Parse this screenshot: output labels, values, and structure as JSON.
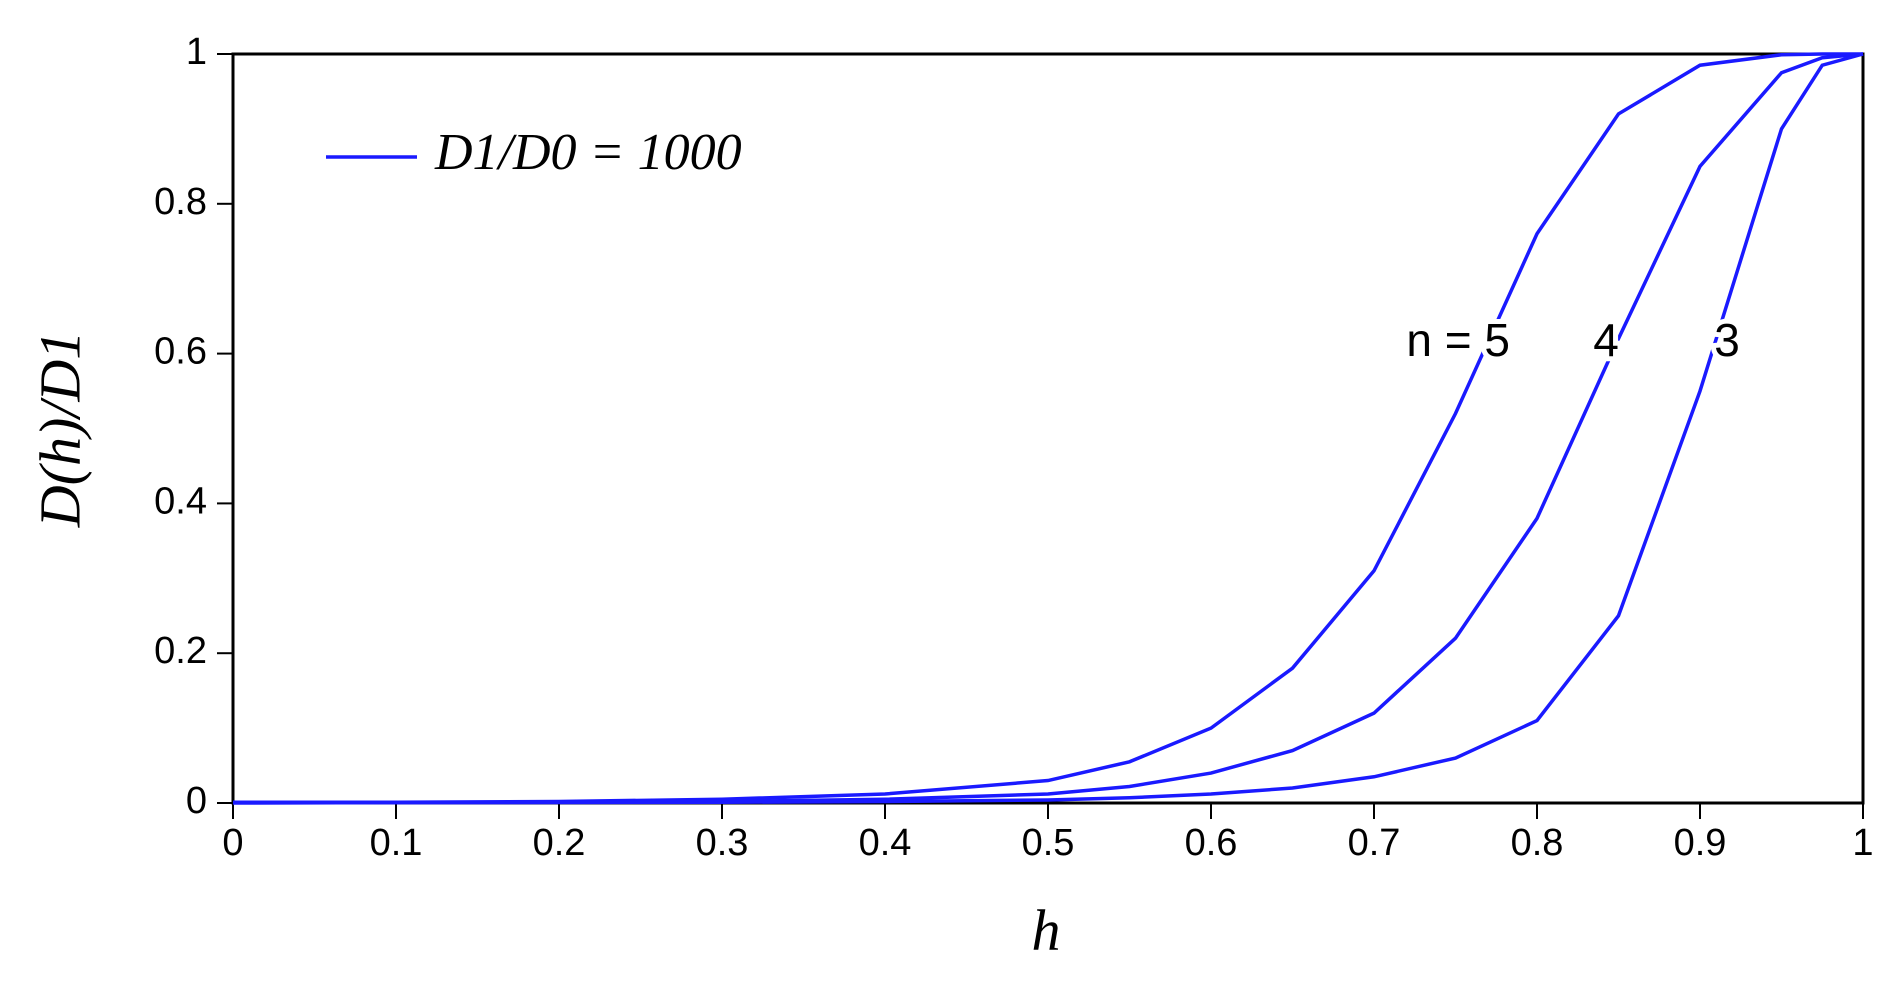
{
  "chart_data": {
    "type": "line",
    "x_label": "h",
    "y_label": "D(h)/D1",
    "legend_label": "D1/D0 = 1000",
    "x": [
      0,
      0.1,
      0.2,
      0.3,
      0.4,
      0.5,
      0.55,
      0.6,
      0.65,
      0.7,
      0.75,
      0.8,
      0.85,
      0.9,
      0.95,
      0.975,
      1
    ],
    "series": [
      {
        "name": "n = 5",
        "color": "#1a1aff",
        "values": [
          0.001,
          0.001,
          0.002,
          0.005,
          0.012,
          0.03,
          0.055,
          0.1,
          0.18,
          0.31,
          0.52,
          0.76,
          0.92,
          0.985,
          0.999,
          1,
          1
        ]
      },
      {
        "name": "4",
        "color": "#1a1aff",
        "values": [
          0.0005,
          0.0007,
          0.001,
          0.002,
          0.005,
          0.012,
          0.022,
          0.04,
          0.07,
          0.12,
          0.22,
          0.38,
          0.62,
          0.85,
          0.975,
          0.995,
          1
        ]
      },
      {
        "name": "3",
        "color": "#1a1aff",
        "values": [
          0,
          0.0005,
          0.0007,
          0.001,
          0.002,
          0.004,
          0.007,
          0.012,
          0.02,
          0.035,
          0.06,
          0.11,
          0.25,
          0.55,
          0.9,
          0.985,
          1
        ]
      }
    ],
    "xlim": [
      0,
      1
    ],
    "ylim": [
      0,
      1
    ],
    "xticks": [
      0,
      0.1,
      0.2,
      0.3,
      0.4,
      0.5,
      0.6,
      0.7,
      0.8,
      0.9,
      1
    ],
    "yticks": [
      0,
      0.2,
      0.4,
      0.6,
      0.8,
      1
    ],
    "grid": false
  }
}
